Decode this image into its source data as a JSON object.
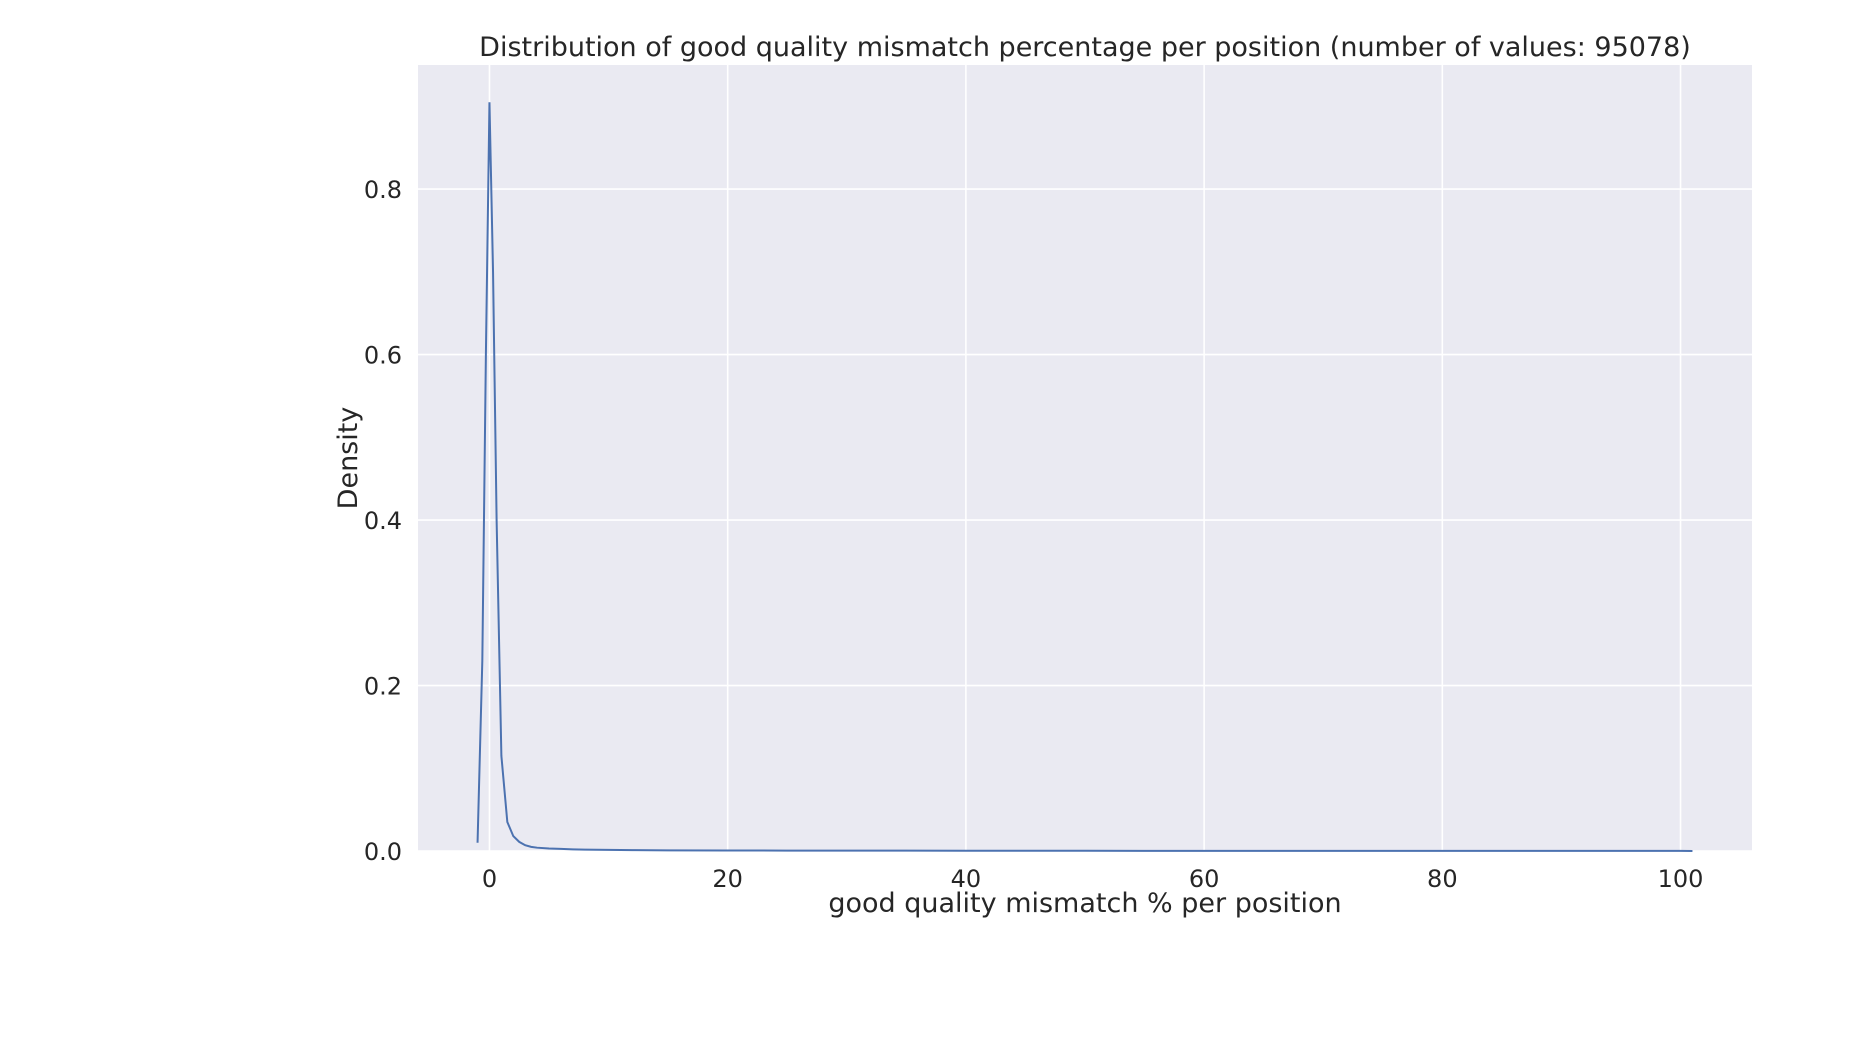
{
  "chart_data": {
    "type": "line",
    "title": "Distribution of good quality mismatch percentage per position (number of values: 95078)",
    "xlabel": "good quality mismatch % per position",
    "ylabel": "Density",
    "xlim": [
      -6,
      106
    ],
    "ylim": [
      0,
      0.95
    ],
    "xticks": [
      0,
      20,
      40,
      60,
      80,
      100
    ],
    "xtick_labels": [
      "0",
      "20",
      "40",
      "60",
      "80",
      "100"
    ],
    "yticks": [
      0.0,
      0.2,
      0.4,
      0.6,
      0.8
    ],
    "ytick_labels": [
      "0.0",
      "0.2",
      "0.4",
      "0.6",
      "0.8"
    ],
    "grid": true,
    "colors": {
      "background": "#eaeaf2",
      "grid": "#ffffff",
      "line": "#4c72b0"
    },
    "series": [
      {
        "x": [
          -1.0,
          -0.6,
          -0.3,
          0.0,
          0.3,
          0.6,
          1.0,
          1.5,
          2.0,
          2.5,
          3.0,
          3.5,
          4.0,
          5.0,
          6.0,
          7.0,
          8.0,
          10.0,
          12.0,
          15.0,
          20.0,
          25.0,
          30.0,
          35.0,
          40.0,
          45.0,
          50.0,
          55.0,
          60.0,
          70.0,
          80.0,
          90.0,
          100.0,
          101.0
        ],
        "y": [
          0.01,
          0.23,
          0.6,
          0.905,
          0.7,
          0.4,
          0.115,
          0.035,
          0.018,
          0.011,
          0.007,
          0.005,
          0.004,
          0.003,
          0.0025,
          0.002,
          0.0017,
          0.0013,
          0.001,
          0.0008,
          0.0006,
          0.0005,
          0.0004,
          0.0004,
          0.0003,
          0.0003,
          0.0003,
          0.0002,
          0.0002,
          0.0001,
          0.0001,
          0.0001,
          0.0001,
          0.0
        ]
      }
    ]
  }
}
